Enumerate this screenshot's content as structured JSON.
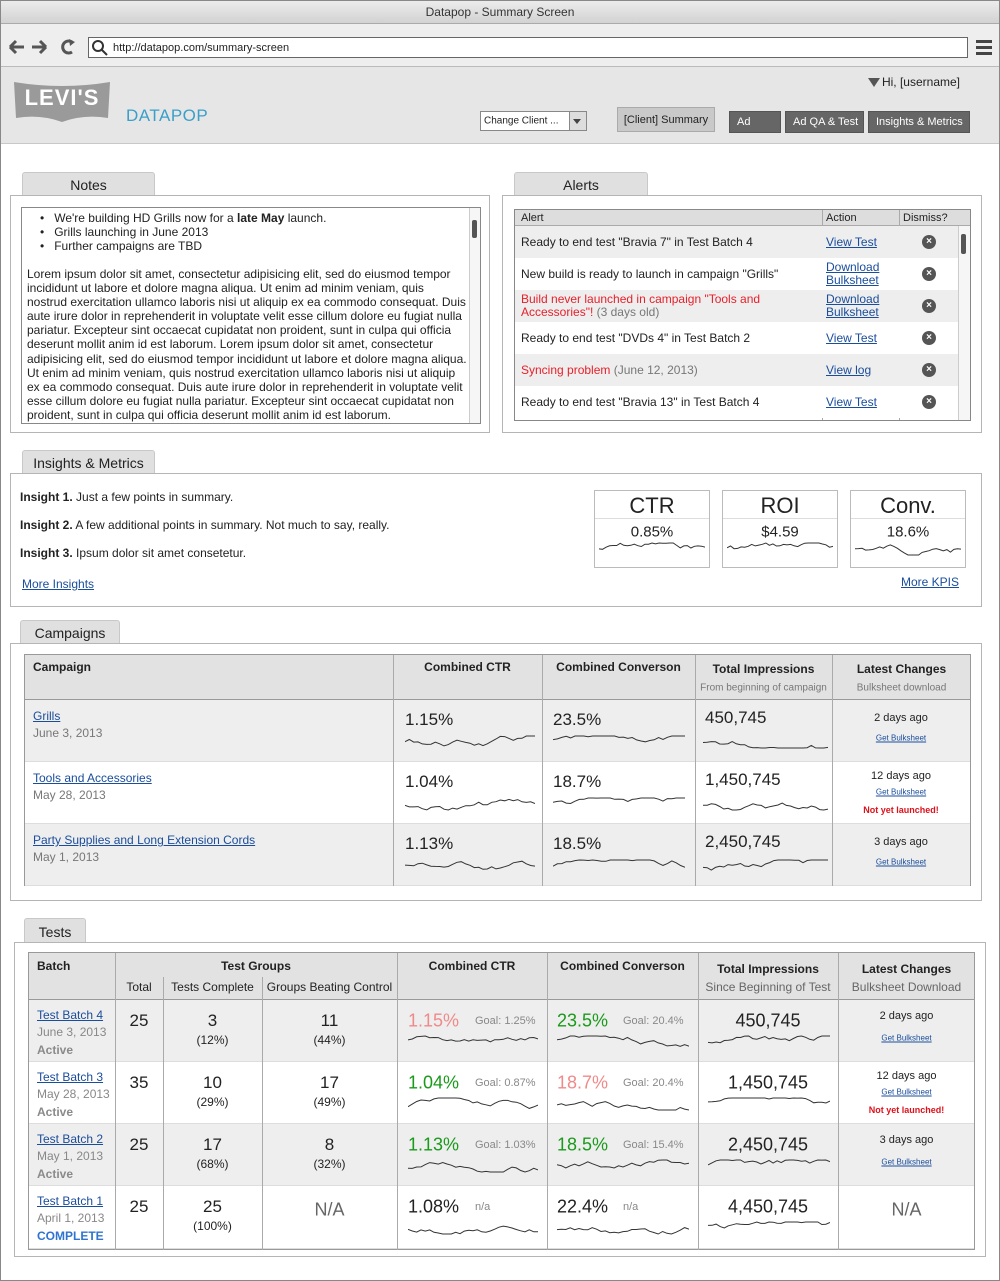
{
  "window": {
    "title": "Datapop - Summary Screen",
    "url": "http://datapop.com/summary-screen"
  },
  "header": {
    "logo": "LEVI'S",
    "brand": "DATAPOP",
    "user": "Hi, [username]",
    "client_select": "Change Client ...",
    "tabs": [
      "[Client] Summary",
      "Ad",
      "Ad QA & Test",
      "Insights & Metrics"
    ]
  },
  "notes": {
    "title": "Notes",
    "bullets": [
      [
        "We're building HD Grills now for a ",
        "late May",
        " launch."
      ],
      [
        "Grills launching in June 2013"
      ],
      [
        "Further campaigns are TBD"
      ]
    ],
    "body": "Lorem ipsum dolor sit amet, consectetur adipisicing elit, sed do eiusmod tempor incididunt ut labore et dolore magna aliqua. Ut enim ad minim veniam, quis nostrud exercitation ullamco laboris nisi ut aliquip ex ea commodo consequat. Duis aute irure dolor in reprehenderit in voluptate velit esse cillum dolore eu fugiat nulla pariatur. Excepteur sint occaecat cupidatat non proident, sunt in culpa qui officia deserunt mollit anim id est laborum. Lorem ipsum dolor sit amet, consectetur adipisicing elit, sed do eiusmod tempor incididunt ut labore et dolore magna aliqua. Ut enim ad minim veniam, quis nostrud exercitation ullamco laboris nisi ut aliquip ex ea commodo consequat. Duis aute irure dolor in reprehenderit in voluptate velit esse cillum dolore eu fugiat nulla pariatur. Excepteur sint occaecat cupidatat non proident, sunt in culpa qui officia deserunt mollit anim id est laborum."
  },
  "alerts": {
    "title": "Alerts",
    "columns": [
      "Alert",
      "Action",
      "Dismiss?"
    ],
    "rows": [
      {
        "text": "Ready to end test \"Bravia 7\" in Test Batch 4",
        "action": "View Test"
      },
      {
        "text": "New build is ready to launch in campaign \"Grills\"",
        "action": "Download Bulksheet"
      },
      {
        "text": "Build never launched in campaign \"Tools and Accessories\"!",
        "color": "#e8202a",
        "note": "(3 days old)",
        "action": "Download Bulksheet"
      },
      {
        "text": "Ready to end test \"DVDs 4\" in Test Batch 2",
        "action": "View Test"
      },
      {
        "text": "Syncing problem",
        "color": "#e8202a",
        "note": "(June 12, 2013)",
        "action": "View log"
      },
      {
        "text": "Ready to end test \"Bravia 13\" in Test Batch 4",
        "action": "View Test"
      }
    ]
  },
  "insights": {
    "title": "Insights & Metrics",
    "items": [
      {
        "label": "Insight 1.",
        "text": "Just a few points in summary."
      },
      {
        "label": "Insight 2.",
        "text": "A few additional points in summary. Not much to say, really."
      },
      {
        "label": "Insight 3.",
        "text": "Ipsum dolor sit amet consetetur."
      }
    ],
    "link": "More Insights",
    "kpis": [
      {
        "name": "CTR",
        "value": "0.85%"
      },
      {
        "name": "ROI",
        "value": "$4.59"
      },
      {
        "name": "Conv.",
        "value": "18.6%"
      }
    ],
    "kpi_link": "More KPIS"
  },
  "campaigns": {
    "title": "Campaigns",
    "columns": [
      {
        "title": "Campaign"
      },
      {
        "title": "Combined CTR"
      },
      {
        "title": "Combined Converson"
      },
      {
        "title": "Total Impressions",
        "subtitle": "From beginning of campaign"
      },
      {
        "title": "Latest Changes",
        "subtitle": "Bulksheet download"
      }
    ],
    "rows": [
      {
        "name": "Grills",
        "date": "June 3, 2013",
        "ctr": "1.15%",
        "conv": "23.5%",
        "impressions": "450,745",
        "changed": "2 days ago",
        "link": "Get Bulksheet"
      },
      {
        "name": "Tools and Accessories",
        "date": "May 28, 2013",
        "ctr": "1.04%",
        "conv": "18.7%",
        "impressions": "1,450,745",
        "changed": "12 days ago",
        "link": "Get Bulksheet",
        "warning": "Not yet launched!"
      },
      {
        "name": "Party Supplies and Long Extension Cords",
        "date": "May 1, 2013",
        "ctr": "1.13%",
        "conv": "18.5%",
        "impressions": "2,450,745",
        "changed": "3 days ago",
        "link": "Get Bulksheet"
      }
    ]
  },
  "tests": {
    "title": "Tests",
    "columns": {
      "batch": "Batch",
      "groups": "Test Groups",
      "total": "Total",
      "complete": "Tests Complete",
      "beating": "Groups Beating Control",
      "ctr": "Combined CTR",
      "conv": "Combined Converson",
      "impressions": "Total Impressions",
      "impressions_sub": "Since Beginning of Test",
      "changes": "Latest Changes",
      "changes_sub": "Bulksheet Download"
    },
    "rows": [
      {
        "name": "Test Batch 4",
        "date": "June 3, 2013",
        "status": "Active",
        "status_color": "#8a8a8a",
        "total": "25",
        "complete": "3",
        "complete_pct": "(12%)",
        "beating": "11",
        "beating_pct": "(44%)",
        "ctr": "1.15%",
        "ctr_color": "#f08a8a",
        "ctr_goal": "Goal: 1.25%",
        "conv": "23.5%",
        "conv_color": "#1a9a1a",
        "conv_goal": "Goal: 20.4%",
        "impressions": "450,745",
        "changed": "2 days ago",
        "link": "Get Bulksheet"
      },
      {
        "name": "Test Batch 3",
        "date": "May 28, 2013",
        "status": "Active",
        "status_color": "#8a8a8a",
        "total": "35",
        "complete": "10",
        "complete_pct": "(29%)",
        "beating": "17",
        "beating_pct": "(49%)",
        "ctr": "1.04%",
        "ctr_color": "#1a9a1a",
        "ctr_goal": "Goal: 0.87%",
        "conv": "18.7%",
        "conv_color": "#f08a8a",
        "conv_goal": "Goal: 20.4%",
        "impressions": "1,450,745",
        "changed": "12 days ago",
        "link": "Get Bulksheet",
        "warning": "Not yet launched!"
      },
      {
        "name": "Test Batch 2",
        "date": "May 1, 2013",
        "status": "Active",
        "status_color": "#8a8a8a",
        "total": "25",
        "complete": "17",
        "complete_pct": "(68%)",
        "beating": "8",
        "beating_pct": "(32%)",
        "ctr": "1.13%",
        "ctr_color": "#1a9a1a",
        "ctr_goal": "Goal: 1.03%",
        "conv": "18.5%",
        "conv_color": "#1a9a1a",
        "conv_goal": "Goal: 15.4%",
        "impressions": "2,450,745",
        "changed": "3 days ago",
        "link": "Get Bulksheet"
      },
      {
        "name": "Test Batch 1",
        "date": "April 1, 2013",
        "status": "COMPLETE",
        "status_color": "#2f74d0",
        "total": "25",
        "complete": "25",
        "complete_pct": "(100%)",
        "beating": "N/A",
        "ctr": "1.08%",
        "ctr_color": "#222222",
        "ctr_goal": "n/a",
        "conv": "22.4%",
        "conv_color": "#222222",
        "conv_goal": "n/a",
        "impressions": "4,450,745",
        "changed": "N/A"
      }
    ]
  }
}
